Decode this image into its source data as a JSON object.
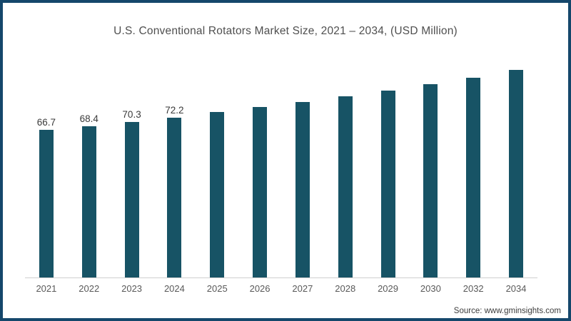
{
  "chart_data": {
    "type": "bar",
    "title": "U.S. Conventional Rotators Market Size, 2021 – 2034, (USD Million)",
    "categories": [
      "2021",
      "2022",
      "2023",
      "2024",
      "2025",
      "2026",
      "2027",
      "2028",
      "2029",
      "2030",
      "2032",
      "2034"
    ],
    "values": [
      66.7,
      68.4,
      70.3,
      72.2,
      74.9,
      77.0,
      79.3,
      81.8,
      84.4,
      87.3,
      90.2,
      93.7
    ],
    "data_labels": [
      "66.7",
      "68.4",
      "70.3",
      "72.2",
      "",
      "",
      "",
      "",
      "",
      "",
      "",
      ""
    ],
    "xlabel": "",
    "ylabel": "",
    "ylim": [
      0,
      98
    ],
    "grid": false,
    "legend": false,
    "y_axis_shown": false,
    "bar_color": "#175365",
    "axis_line_color": "#cfcfcf"
  },
  "source": {
    "label": "Source: www.gminsights.com"
  },
  "colors": {
    "frame_border": "#15476b",
    "title_text": "#4f4f4f",
    "tick_text": "#595959",
    "value_label_text": "#3a3a3a",
    "background": "#ffffff"
  }
}
